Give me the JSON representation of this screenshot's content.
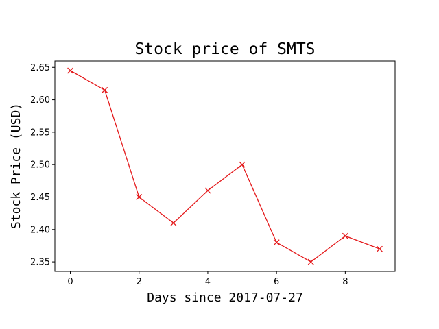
{
  "chart_data": {
    "type": "line",
    "title": "Stock price of SMTS",
    "xlabel": "Days since 2017-07-27",
    "ylabel": "Stock Price (USD)",
    "x": [
      0,
      1,
      2,
      3,
      4,
      5,
      6,
      7,
      8,
      9
    ],
    "series": [
      {
        "values": [
          2.645,
          2.615,
          2.45,
          2.41,
          2.46,
          2.5,
          2.38,
          2.35,
          2.39,
          2.37
        ],
        "color": "#e41a1c",
        "marker": "x"
      }
    ],
    "xlim": [
      -0.45,
      9.45
    ],
    "ylim": [
      2.3353,
      2.6598
    ],
    "xticks": [
      0,
      2,
      4,
      6,
      8
    ],
    "xtick_labels": [
      "0",
      "2",
      "4",
      "6",
      "8"
    ],
    "yticks": [
      2.35,
      2.4,
      2.45,
      2.5,
      2.55,
      2.6,
      2.65
    ],
    "ytick_labels": [
      "2.35",
      "2.40",
      "2.45",
      "2.50",
      "2.55",
      "2.60",
      "2.65"
    ],
    "grid": false,
    "legend": "none"
  }
}
